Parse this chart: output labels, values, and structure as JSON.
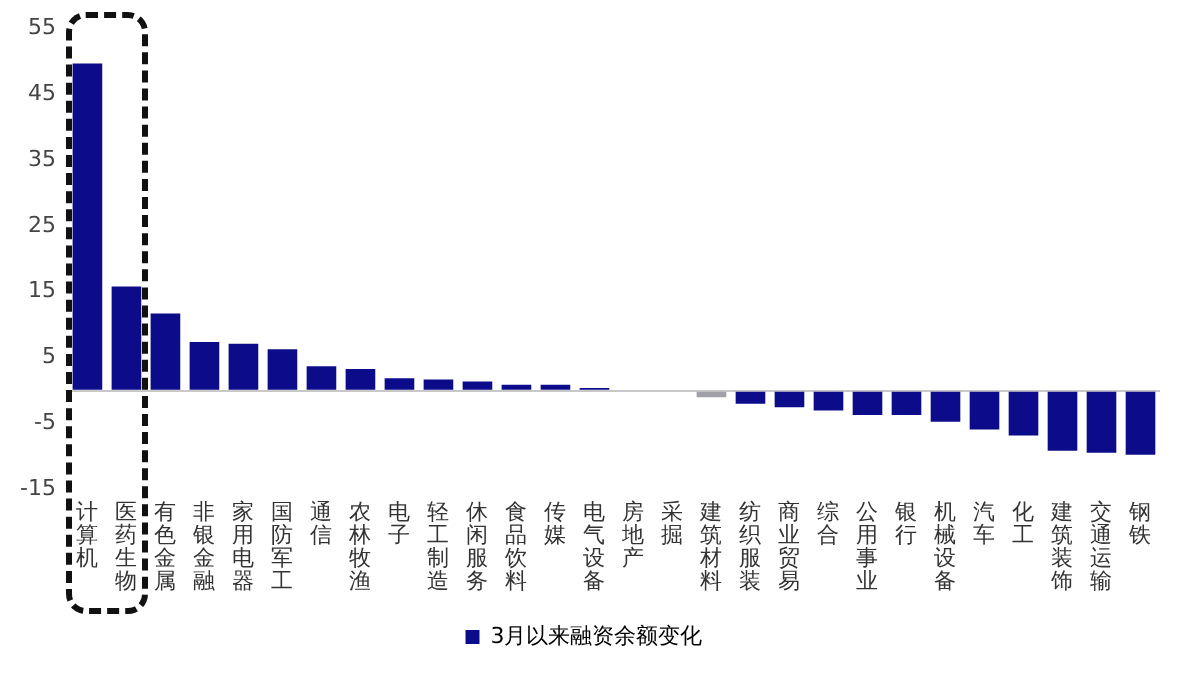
{
  "chart_data": {
    "type": "bar",
    "categories": [
      "计算机",
      "医药生物",
      "有色金属",
      "非银金融",
      "家用电器",
      "国防军工",
      "通信",
      "农林牧渔",
      "电子",
      "轻工制造",
      "休闲服务",
      "食品饮料",
      "传媒",
      "电气设备",
      "房地产",
      "采掘",
      "建筑材料",
      "纺织服装",
      "商业贸易",
      "综合",
      "公用事业",
      "银行",
      "机械设备",
      "汽车",
      "化工",
      "建筑装饰",
      "交通运输",
      "钢铁"
    ],
    "series": [
      {
        "name": "3月以来融资余额变化",
        "color": "#0c0c8a",
        "colors": [
          "#0c0c8a",
          "#0c0c8a",
          "#0c0c8a",
          "#0c0c8a",
          "#0c0c8a",
          "#0c0c8a",
          "#0c0c8a",
          "#0c0c8a",
          "#0c0c8a",
          "#0c0c8a",
          "#0c0c8a",
          "#0c0c8a",
          "#0c0c8a",
          "#0c0c8a",
          "#0c0c8a",
          "#0c0c8a",
          "#a0a0a8",
          "#0c0c8a",
          "#0c0c8a",
          "#0c0c8a",
          "#0c0c8a",
          "#0c0c8a",
          "#0c0c8a",
          "#0c0c8a",
          "#0c0c8a",
          "#0c0c8a",
          "#0c0c8a",
          "#0c0c8a"
        ],
        "values": [
          49.6,
          15.8,
          11.7,
          7.4,
          7.1,
          6.3,
          3.7,
          3.3,
          1.9,
          1.7,
          1.4,
          0.9,
          0.9,
          0.4,
          0,
          0,
          -1,
          -2,
          -2.5,
          -3,
          -3.7,
          -3.7,
          -4.7,
          -5.9,
          -6.8,
          -9.1,
          -9.4,
          -9.7
        ]
      }
    ],
    "ylim": [
      -15,
      55
    ],
    "yticks": [
      55,
      45,
      35,
      25,
      15,
      5,
      -5,
      -15
    ],
    "grid": false,
    "legend": "bottom"
  }
}
